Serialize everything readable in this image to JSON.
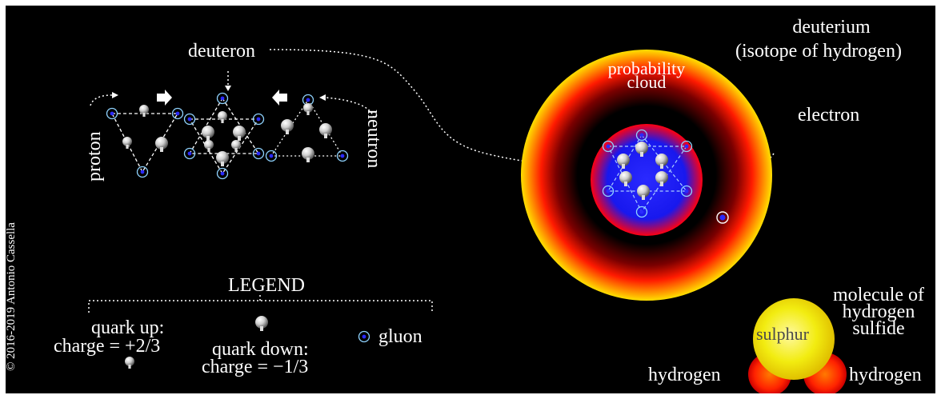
{
  "labels": {
    "deuteron": "deuteron",
    "proton": "proton",
    "neutron": "neutron",
    "probability_cloud_line1": "probability",
    "probability_cloud_line2": "cloud",
    "deuterium": "deuterium",
    "isotope": "(isotope of hydrogen)",
    "electron": "electron",
    "legend_title": "LEGEND",
    "quark_up_line1": "quark up:",
    "quark_up_line2": "charge = +2/3",
    "quark_down_line1": "quark down:",
    "quark_down_line2": "charge = −1/3",
    "gluon": "gluon",
    "molecule_line1": "molecule of",
    "molecule_line2": "hydrogen",
    "molecule_line3": "sulfide",
    "sulphur": "sulphur",
    "hydrogen_left": "hydrogen",
    "hydrogen_right": "hydrogen",
    "credit": "© 2016-2019  Antonio Cassella"
  },
  "colors": {
    "background": "#000000",
    "text": "#ffffff",
    "cloud_outer": "#ffd400",
    "cloud_mid": "#ff2a00",
    "nucleus": "#1a1aff",
    "gluon_ring": "#8fd3ff",
    "sulphur": "#f4f000",
    "hydrogen_atom": "#ff3000"
  },
  "icons": [
    "proton-icon",
    "deuteron-icon",
    "neutron-icon",
    "arrow-right-icon",
    "arrow-left-icon",
    "quark-up-icon",
    "quark-down-icon",
    "gluon-icon",
    "electron-icon"
  ]
}
